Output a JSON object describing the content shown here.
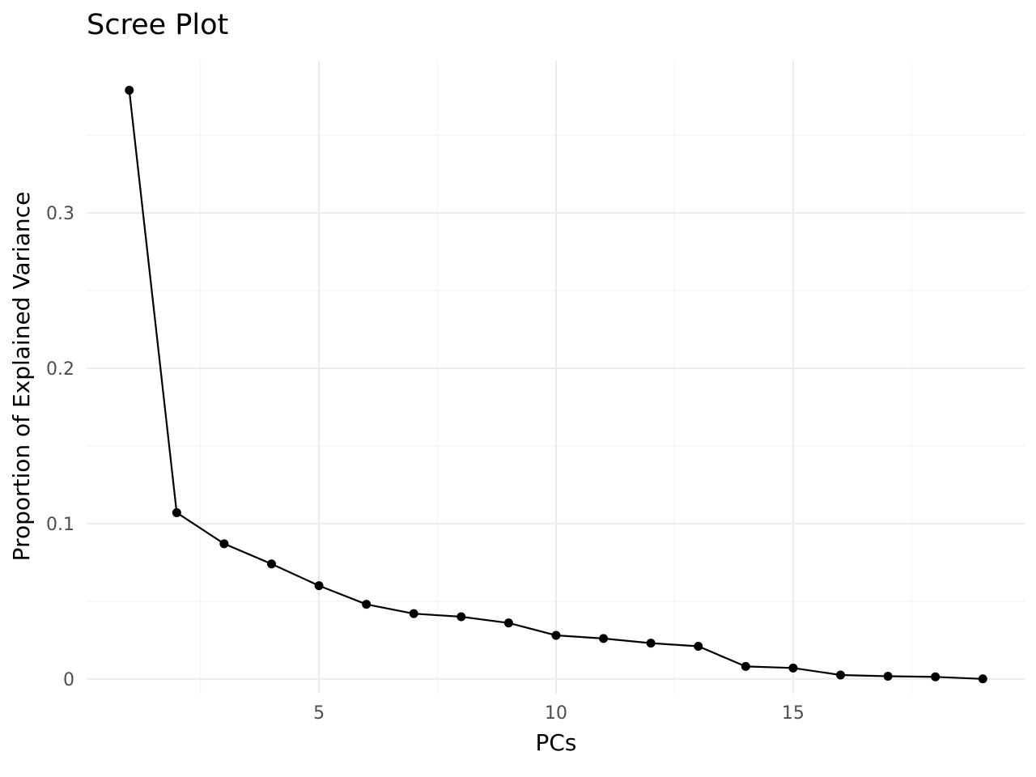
{
  "chart_data": {
    "type": "line",
    "title": "Scree Plot",
    "xlabel": "PCs",
    "ylabel": "Proportion of Explained Variance",
    "x": [
      1,
      2,
      3,
      4,
      5,
      6,
      7,
      8,
      9,
      10,
      11,
      12,
      13,
      14,
      15,
      16,
      17,
      18,
      19
    ],
    "values": [
      0.379,
      0.107,
      0.087,
      0.074,
      0.06,
      0.048,
      0.042,
      0.04,
      0.036,
      0.028,
      0.026,
      0.023,
      0.021,
      0.008,
      0.007,
      0.0025,
      0.0017,
      0.0013,
      0.0
    ],
    "xlim": [
      0.1,
      19.9
    ],
    "ylim": [
      -0.0095,
      0.398
    ],
    "x_ticks": [
      5,
      10,
      15
    ],
    "x_tick_labels": [
      "5",
      "10",
      "15"
    ],
    "y_ticks": [
      0,
      0.1,
      0.2,
      0.3
    ],
    "y_tick_labels": [
      "0",
      "0.1",
      "0.2",
      "0.3"
    ],
    "grid": true,
    "legend": "none",
    "colors": {
      "line": "#000000",
      "point": "#000000",
      "grid_major": "#ebebeb",
      "grid_minor": "#f5f5f5"
    }
  }
}
